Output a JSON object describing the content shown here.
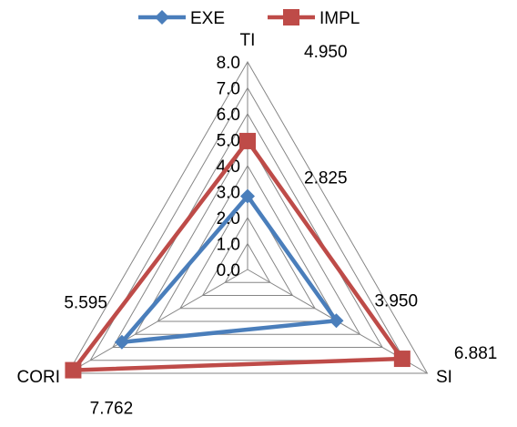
{
  "chart_data": {
    "type": "radar",
    "axes": [
      "TI",
      "SI",
      "CORI"
    ],
    "rmin": 0,
    "rmax": 8,
    "ticks": [
      "0.0",
      "1.0",
      "2.0",
      "3.0",
      "4.0",
      "5.0",
      "6.0",
      "7.0",
      "8.0"
    ],
    "gridlines": true,
    "legend_position": "top",
    "series": [
      {
        "name": "EXE",
        "values": [
          2.825,
          3.95,
          5.595
        ],
        "labels": [
          "2.825",
          "3.950",
          "5.595"
        ],
        "color": "#4a7ebb",
        "marker": "diamond"
      },
      {
        "name": "IMPL",
        "values": [
          4.95,
          6.881,
          7.762
        ],
        "labels": [
          "4.950",
          "6.881",
          "7.762"
        ],
        "color": "#be4b48",
        "marker": "square"
      }
    ]
  }
}
